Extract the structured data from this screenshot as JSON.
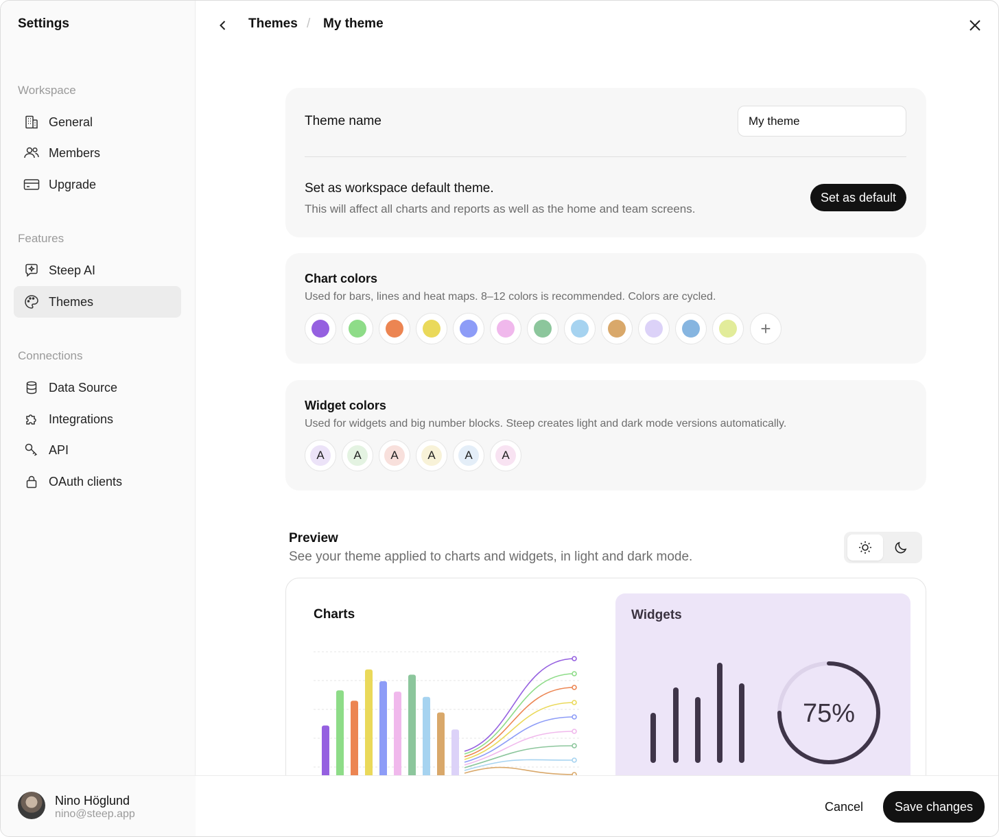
{
  "sidebar": {
    "title": "Settings",
    "sections": [
      {
        "label": "Workspace",
        "items": [
          {
            "label": "General",
            "icon": "building-icon"
          },
          {
            "label": "Members",
            "icon": "users-icon"
          },
          {
            "label": "Upgrade",
            "icon": "credit-card-icon"
          }
        ]
      },
      {
        "label": "Features",
        "items": [
          {
            "label": "Steep AI",
            "icon": "chat-sparkle-icon"
          },
          {
            "label": "Themes",
            "icon": "palette-icon",
            "active": true
          }
        ]
      },
      {
        "label": "Connections",
        "items": [
          {
            "label": "Data Source",
            "icon": "database-icon"
          },
          {
            "label": "Integrations",
            "icon": "puzzle-icon"
          },
          {
            "label": "API",
            "icon": "key-icon"
          },
          {
            "label": "OAuth clients",
            "icon": "lock-icon"
          }
        ]
      }
    ],
    "user": {
      "name": "Nino Höglund",
      "email": "nino@steep.app"
    }
  },
  "header": {
    "breadcrumb": [
      "Themes",
      "My theme"
    ],
    "separator": "/"
  },
  "theme_name": {
    "label": "Theme name",
    "value": "My theme"
  },
  "default_theme": {
    "title": "Set as workspace default theme.",
    "description": "This will affect all charts and reports as well as the home and team screens.",
    "button": "Set as default"
  },
  "chart_colors": {
    "title": "Chart colors",
    "description": "Used for bars, lines and heat maps. 8–12 colors is recommended. Colors are cycled.",
    "colors": [
      "#9560e0",
      "#8edc88",
      "#ec8552",
      "#ead95a",
      "#8d9cf7",
      "#f0b8ec",
      "#8cc69c",
      "#a6d3f0",
      "#d9a86a",
      "#dcd2f8",
      "#86b5e0",
      "#e2ec9a"
    ],
    "add_icon": "plus-icon"
  },
  "widget_colors": {
    "title": "Widget colors",
    "description": "Used for widgets and big number blocks. Steep creates light and dark mode versions automatically.",
    "chips": [
      {
        "letter": "A",
        "bg": "#ece3f8"
      },
      {
        "letter": "A",
        "bg": "#e4f3e2"
      },
      {
        "letter": "A",
        "bg": "#f8e0dc"
      },
      {
        "letter": "A",
        "bg": "#f8f2d8"
      },
      {
        "letter": "A",
        "bg": "#e4eef8"
      },
      {
        "letter": "A",
        "bg": "#f8e3f2"
      }
    ]
  },
  "preview": {
    "title": "Preview",
    "description": "See your theme applied to charts and widgets, in light and dark mode.",
    "mode": "light",
    "charts_label": "Charts",
    "widgets_label": "Widgets",
    "widget_progress": "75%",
    "widget_progress_value": 0.75
  },
  "footer": {
    "cancel": "Cancel",
    "save": "Save changes"
  }
}
